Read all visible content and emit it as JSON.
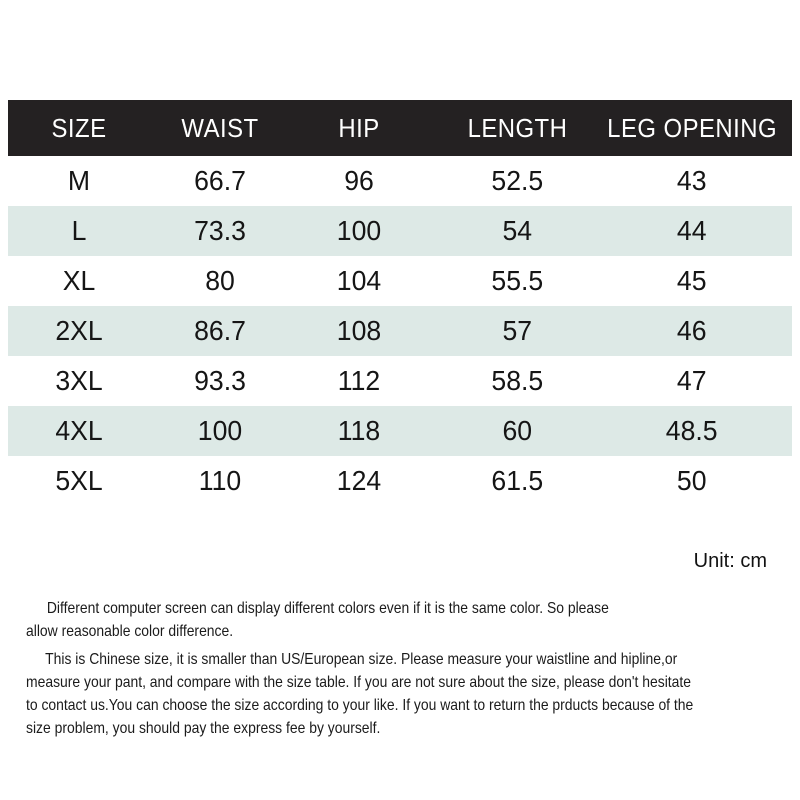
{
  "colors": {
    "header_bg": "#242122",
    "header_text": "#ffffff",
    "alt_row_bg": "#dde9e6",
    "body_text": "#151515",
    "page_bg": "#ffffff"
  },
  "table": {
    "unit_label": "Unit: cm",
    "columns": [
      "SIZE",
      "WAIST",
      "HIP",
      "LENGTH",
      "LEG OPENING"
    ],
    "rows": [
      {
        "cells": [
          "M",
          "66.7",
          "96",
          "52.5",
          "43"
        ]
      },
      {
        "cells": [
          "L",
          "73.3",
          "100",
          "54",
          "44"
        ]
      },
      {
        "cells": [
          "XL",
          "80",
          "104",
          "55.5",
          "45"
        ]
      },
      {
        "cells": [
          "2XL",
          "86.7",
          "108",
          "57",
          "46"
        ]
      },
      {
        "cells": [
          "3XL",
          "93.3",
          "112",
          "58.5",
          "47"
        ]
      },
      {
        "cells": [
          "4XL",
          "100",
          "118",
          "60",
          "48.5"
        ]
      },
      {
        "cells": [
          "5XL",
          "110",
          "124",
          "61.5",
          "50"
        ]
      }
    ]
  },
  "notes": {
    "color_disclaimer_lines": [
      "Different computer screen can display different colors even if it is the same color. So please",
      "allow reasonable color difference."
    ],
    "size_disclaimer_lines": [
      "This is Chinese size, it is smaller than US/European size. Please measure your waistline and hipline,or",
      "measure your pant, and compare with the size table. If you are not sure about the size, please don't hesitate",
      "to contact us.You can choose the size according to your like. If you want to return the prducts because of the",
      "size problem, you should pay the express fee by yourself."
    ]
  },
  "chart_data": {
    "type": "table",
    "columns": [
      "SIZE",
      "WAIST",
      "HIP",
      "LENGTH",
      "LEG OPENING"
    ],
    "rows": [
      [
        "M",
        66.7,
        96,
        52.5,
        43
      ],
      [
        "L",
        73.3,
        100,
        54,
        44
      ],
      [
        "XL",
        80,
        104,
        55.5,
        45
      ],
      [
        "2XL",
        86.7,
        108,
        57,
        46
      ],
      [
        "3XL",
        93.3,
        112,
        58.5,
        47
      ],
      [
        "4XL",
        100,
        118,
        60,
        48.5
      ],
      [
        "5XL",
        110,
        124,
        61.5,
        50
      ]
    ],
    "unit": "cm"
  }
}
